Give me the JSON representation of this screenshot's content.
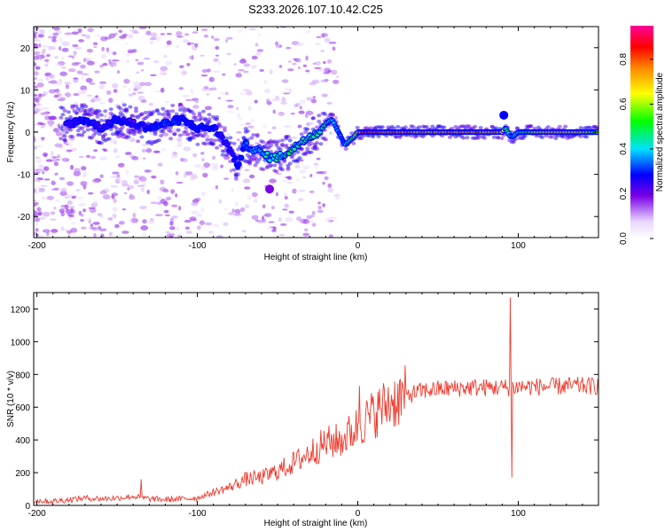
{
  "title": "S233.2026.107.10.42.C25",
  "colors": {
    "signal": "#f03a2e",
    "frame": "#000000"
  },
  "chart_data": [
    {
      "id": "spectrogram",
      "type": "heatmap",
      "xlabel": "Height of straight line (km)",
      "ylabel": "Frequency (Hz)",
      "xlim": [
        -202,
        150
      ],
      "ylim": [
        -25,
        25
      ],
      "xticks": [
        -200,
        -100,
        0,
        100
      ],
      "yticks": [
        -20,
        -10,
        0,
        10,
        20
      ],
      "xtick_labels": [
        "-200",
        "-100",
        "0",
        "100"
      ],
      "ytick_labels": [
        "-20",
        "-10",
        "0",
        "10",
        "20"
      ],
      "colorbar": {
        "label": "Normalized spectral amplitude",
        "range": [
          0,
          0.95
        ],
        "ticks": [
          0.0,
          0.2,
          0.4,
          0.6,
          0.8
        ],
        "tick_labels": [
          "0.0",
          "0.2",
          "0.4",
          "0.6",
          "0.8"
        ]
      },
      "ridge": {
        "x": [
          -180,
          -170,
          -160,
          -150,
          -140,
          -130,
          -120,
          -110,
          -100,
          -90,
          -85,
          -80,
          -75,
          -70,
          -65,
          -60,
          -55,
          -50,
          -45,
          -40,
          -35,
          -30,
          -25,
          -20,
          -16,
          -12,
          -8,
          -5,
          -2,
          0,
          5,
          10,
          20,
          40,
          60,
          80,
          90,
          92,
          95,
          97,
          100,
          120,
          140,
          150
        ],
        "y": [
          2,
          3,
          1,
          3,
          2,
          1,
          2,
          3,
          1,
          1,
          -1,
          -4,
          -8,
          -3,
          -4,
          -5,
          -6,
          -6,
          -5,
          -4,
          -2,
          -1,
          0,
          2,
          3,
          0,
          -3,
          -2,
          -1,
          0,
          0,
          0,
          0,
          0,
          0,
          0,
          0,
          1,
          -1,
          -1,
          0,
          0,
          0,
          0
        ],
        "amplitude": [
          0.25,
          0.3,
          0.25,
          0.3,
          0.25,
          0.3,
          0.35,
          0.3,
          0.3,
          0.3,
          0.25,
          0.25,
          0.3,
          0.35,
          0.4,
          0.45,
          0.5,
          0.5,
          0.5,
          0.55,
          0.5,
          0.55,
          0.55,
          0.55,
          0.45,
          0.35,
          0.4,
          0.55,
          0.65,
          0.7,
          0.9,
          0.92,
          0.85,
          0.8,
          0.8,
          0.8,
          0.75,
          0.6,
          0.45,
          0.4,
          0.5,
          0.8,
          0.7,
          0.6
        ]
      },
      "blobs": [
        {
          "x": -55,
          "y": -13.5,
          "amplitude": 0.2
        },
        {
          "x": 91,
          "y": 4,
          "amplitude": 0.3
        }
      ]
    },
    {
      "id": "snr",
      "type": "line",
      "xlabel": "Height of straight line (km)",
      "ylabel": "SNR (10 * v/v)",
      "xlim": [
        -202,
        150
      ],
      "ylim": [
        0,
        1300
      ],
      "xticks": [
        -200,
        -100,
        0,
        100
      ],
      "yticks": [
        0,
        200,
        400,
        600,
        800,
        1000,
        1200
      ],
      "xtick_labels": [
        "-200",
        "-100",
        "0",
        "100"
      ],
      "ytick_labels": [
        "0",
        "200",
        "400",
        "600",
        "800",
        "1000",
        "1200"
      ],
      "series": [
        {
          "name": "SNR",
          "x": [
            -202,
            -190,
            -180,
            -170,
            -160,
            -150,
            -140,
            -130,
            -120,
            -110,
            -100,
            -90,
            -80,
            -70,
            -60,
            -50,
            -40,
            -30,
            -20,
            -10,
            0,
            10,
            20,
            30,
            40,
            50,
            60,
            70,
            80,
            90,
            95,
            100,
            110,
            120,
            130,
            140,
            150
          ],
          "y": [
            30,
            25,
            35,
            45,
            40,
            45,
            55,
            40,
            35,
            40,
            45,
            80,
            110,
            160,
            170,
            210,
            260,
            320,
            380,
            400,
            480,
            560,
            630,
            670,
            700,
            710,
            715,
            720,
            720,
            720,
            720,
            725,
            725,
            725,
            730,
            730,
            730
          ],
          "spikes": [
            {
              "x": -135,
              "y": 160
            },
            {
              "x": 1,
              "y": 730
            },
            {
              "x": 95,
              "y": 1270
            },
            {
              "x": 96,
              "y": 170
            }
          ]
        }
      ]
    }
  ]
}
